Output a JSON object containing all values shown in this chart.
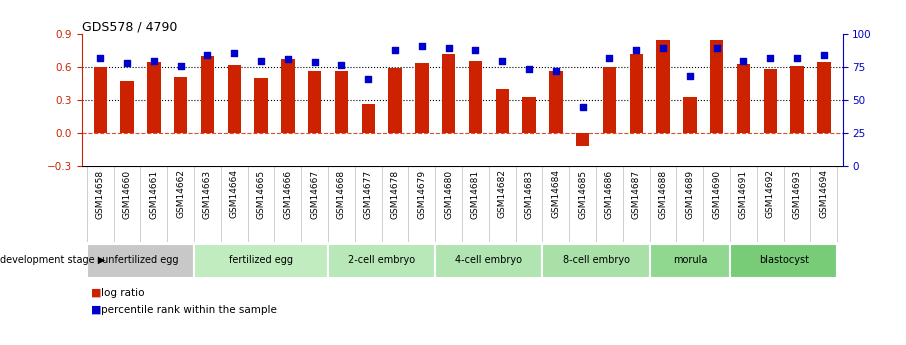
{
  "title": "GDS578 / 4790",
  "samples": [
    "GSM14658",
    "GSM14660",
    "GSM14661",
    "GSM14662",
    "GSM14663",
    "GSM14664",
    "GSM14665",
    "GSM14666",
    "GSM14667",
    "GSM14668",
    "GSM14677",
    "GSM14678",
    "GSM14679",
    "GSM14680",
    "GSM14681",
    "GSM14682",
    "GSM14683",
    "GSM14684",
    "GSM14685",
    "GSM14686",
    "GSM14687",
    "GSM14688",
    "GSM14689",
    "GSM14690",
    "GSM14691",
    "GSM14692",
    "GSM14693",
    "GSM14694"
  ],
  "log_ratios": [
    0.6,
    0.47,
    0.65,
    0.51,
    0.7,
    0.62,
    0.5,
    0.68,
    0.57,
    0.57,
    0.26,
    0.59,
    0.64,
    0.72,
    0.66,
    0.4,
    0.33,
    0.57,
    -0.12,
    0.6,
    0.72,
    0.85,
    0.33,
    0.85,
    0.63,
    0.58,
    0.61,
    0.65
  ],
  "percentile_ranks": [
    82,
    78,
    80,
    76,
    84,
    86,
    80,
    81,
    79,
    77,
    66,
    88,
    91,
    90,
    88,
    80,
    74,
    72,
    45,
    82,
    88,
    90,
    68,
    90,
    80,
    82,
    82,
    84
  ],
  "stage_groups": [
    {
      "label": "unfertilized egg",
      "start": 0,
      "end": 4,
      "color": "#c8c8c8"
    },
    {
      "label": "fertilized egg",
      "start": 4,
      "end": 9,
      "color": "#c0ecc0"
    },
    {
      "label": "2-cell embryo",
      "start": 9,
      "end": 13,
      "color": "#b8e8b8"
    },
    {
      "label": "4-cell embryo",
      "start": 13,
      "end": 17,
      "color": "#b0e4b0"
    },
    {
      "label": "8-cell embryo",
      "start": 17,
      "end": 21,
      "color": "#a8e0a8"
    },
    {
      "label": "morula",
      "start": 21,
      "end": 24,
      "color": "#90d890"
    },
    {
      "label": "blastocyst",
      "start": 24,
      "end": 28,
      "color": "#78cc78"
    }
  ],
  "bar_color": "#cc2200",
  "dot_color": "#0000cc",
  "ylim_left": [
    -0.3,
    0.9
  ],
  "ylim_right": [
    0,
    100
  ],
  "yticks_left": [
    -0.3,
    0.0,
    0.3,
    0.6,
    0.9
  ],
  "yticks_right": [
    0,
    25,
    50,
    75,
    100
  ],
  "hlines_dotted": [
    0.3,
    0.6
  ],
  "hline_dashed": 0.0,
  "background_color": "#ffffff",
  "legend_labels": [
    "log ratio",
    "percentile rank within the sample"
  ]
}
